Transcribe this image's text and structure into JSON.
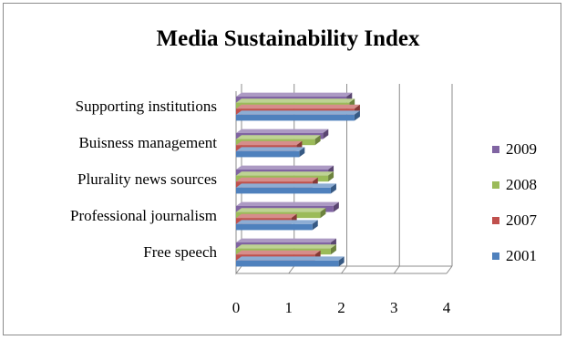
{
  "chart_data": {
    "type": "bar",
    "orientation": "horizontal",
    "style": "3d-clustered",
    "title": "Media Sustainability Index",
    "categories": [
      "Supporting institutions",
      "Buisness management",
      "Plurality news sources",
      "Professional journalism",
      "Free speech"
    ],
    "series": [
      {
        "name": "2009",
        "color": "#8064a2",
        "values": [
          2.1,
          1.65,
          1.75,
          1.85,
          1.8
        ]
      },
      {
        "name": "2008",
        "color": "#9bbb59",
        "values": [
          2.15,
          1.5,
          1.75,
          1.6,
          1.8
        ]
      },
      {
        "name": "2007",
        "color": "#c0504d",
        "values": [
          2.25,
          1.15,
          1.45,
          1.05,
          1.5
        ]
      },
      {
        "name": "2001",
        "color": "#4f81bd",
        "values": [
          2.25,
          1.2,
          1.8,
          1.45,
          1.95
        ]
      }
    ],
    "xlim": [
      0,
      4
    ],
    "xticks": [
      "0",
      "1",
      "2",
      "3",
      "4"
    ],
    "grid": true,
    "legend_position": "right"
  }
}
